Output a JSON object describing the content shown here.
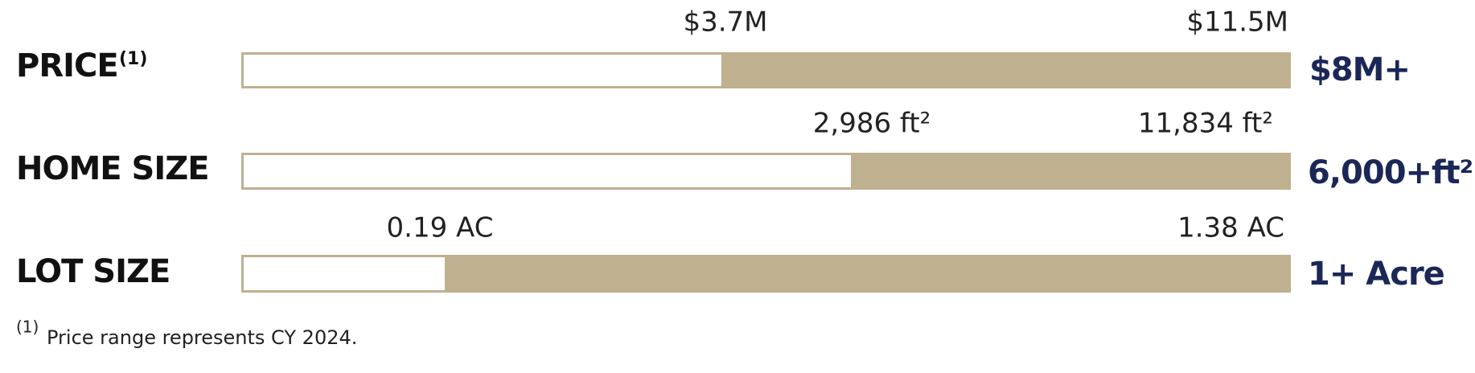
{
  "title_marker": "(1)",
  "rows": [
    {
      "label": "PRICE",
      "low": "$3.7M",
      "high": "$11.5M",
      "summary": "$8M+"
    },
    {
      "label": "HOME SIZE",
      "low": "2,986 ft²",
      "high": "11,834 ft²",
      "summary": "6,000+ft²"
    },
    {
      "label": "LOT SIZE",
      "low": "0.19 AC",
      "high": "1.38 AC",
      "summary": "1+ Acre"
    }
  ],
  "footnote": {
    "marker": "(1)",
    "text": "Price range represents CY 2024."
  }
}
